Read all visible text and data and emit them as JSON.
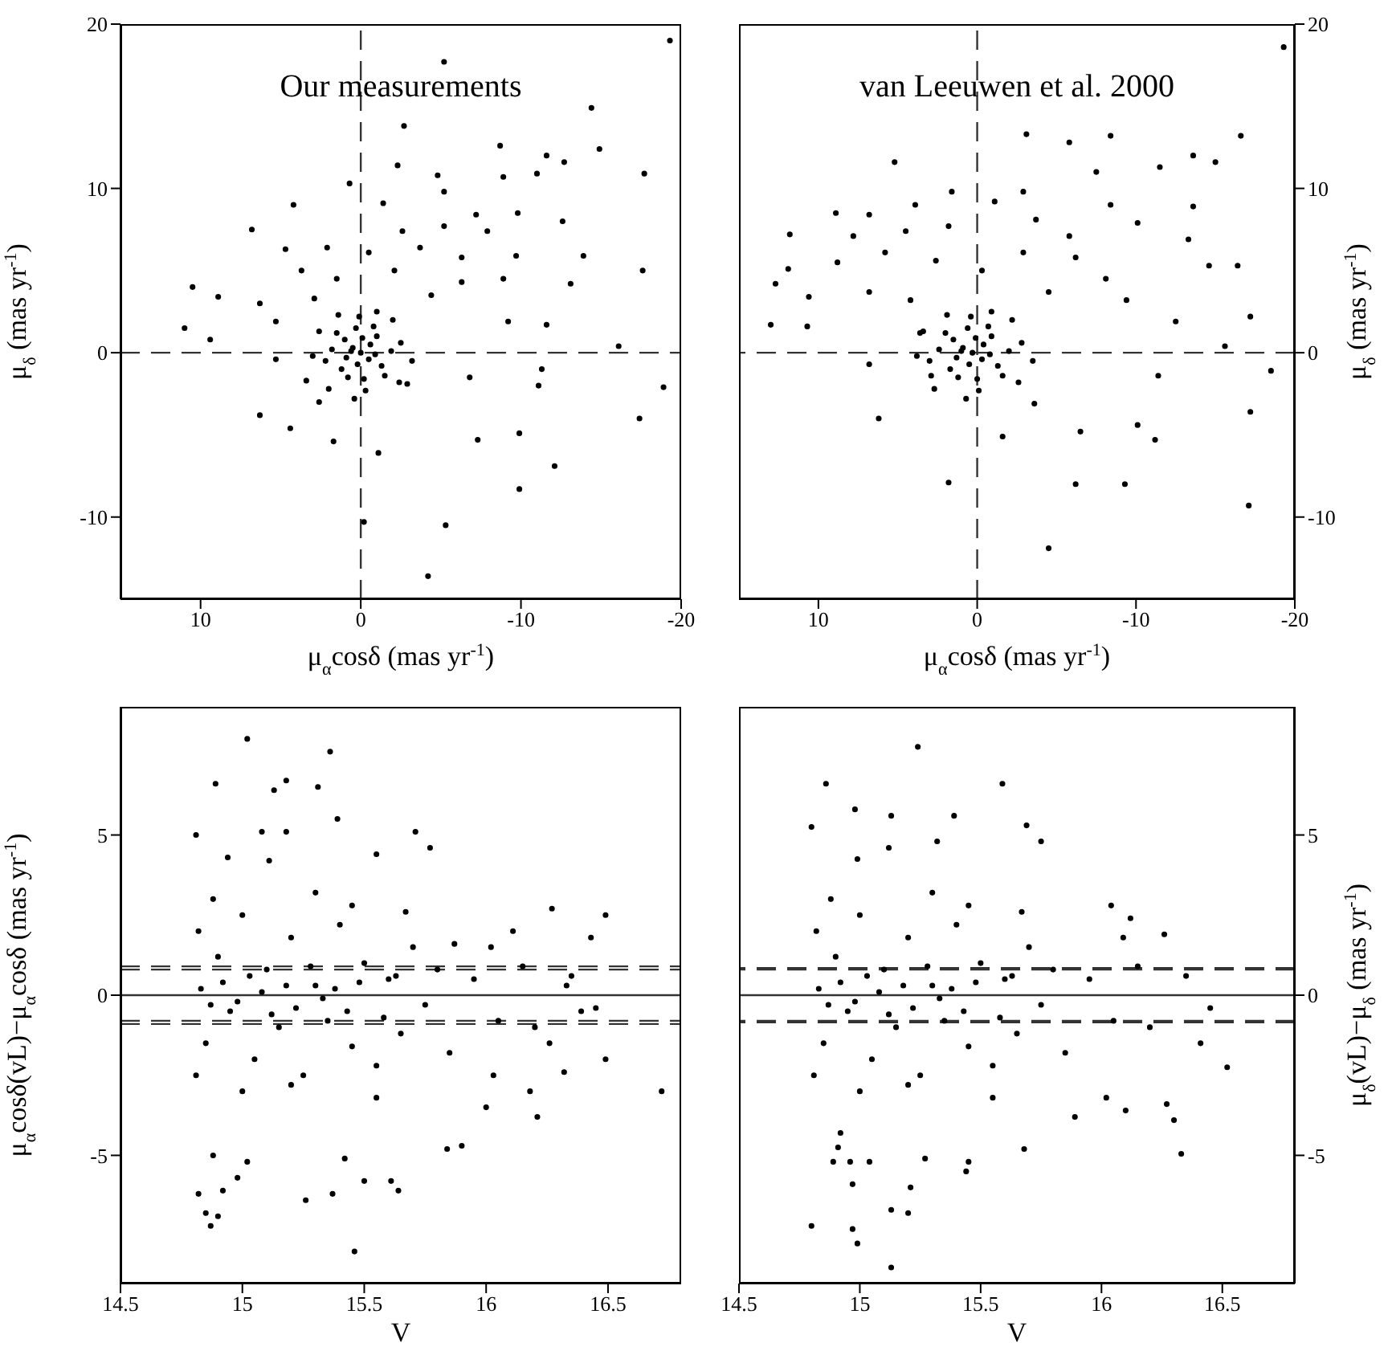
{
  "chart_data": [
    {
      "type": "scatter",
      "title": "Our measurements",
      "xlabel": "μ$_{α}$cosδ (mas yr$^{-1}$)",
      "ylabel": "μ$_{δ}$ (mas yr$^{-1}$)",
      "xlim": [
        15,
        -20
      ],
      "xticks": [
        10,
        0,
        -10,
        -20
      ],
      "ylim": [
        -15,
        20
      ],
      "yticks": [
        -10,
        0,
        10,
        20
      ],
      "marker": "circle",
      "ref_lines": [
        {
          "axis": "x",
          "value": 0,
          "line_style": "dashed"
        },
        {
          "axis": "y",
          "value": 0,
          "line_style": "dashed"
        }
      ],
      "series": [
        {
          "color": "#000000",
          "x": [
            -19.3,
            -5.2,
            -14.4,
            -2.7,
            -14.9,
            -8.7,
            -11.6,
            -12.7,
            -17.7,
            -11.0,
            -8.9,
            -2.3,
            -4.8,
            0.7,
            -5.2,
            4.2,
            -1.4,
            -7.2,
            -9.8,
            -12.6,
            6.8,
            -2.6,
            -5.2,
            -7.9,
            -13.9,
            4.7,
            2.1,
            -0.5,
            -3.7,
            -6.3,
            -9.7,
            10.5,
            8.9,
            3.7,
            1.5,
            -2.1,
            -6.3,
            -8.9,
            -13.1,
            -17.6,
            6.3,
            2.9,
            -4.4,
            -9.2,
            -11.6,
            11.0,
            9.4,
            5.3,
            -16.1,
            6.3,
            4.4,
            1.7,
            -1.1,
            -11.3,
            -11.1,
            -6.8,
            -18.9,
            -17.4,
            -7.3,
            -9.9,
            -12.1,
            -9.9,
            -0.2,
            -5.3,
            -4.2,
            5.3,
            2.6,
            -2.9,
            3.4,
            0,
            0.5,
            -0.5,
            1,
            -1,
            1.2,
            -1.3,
            0.3,
            -0.2,
            1.8,
            -1.9,
            0.8,
            -0.8,
            1.5,
            -1.5,
            2.2,
            -2.5,
            0.1,
            -0.3,
            2.6,
            -2.4,
            1.4,
            -1.0,
            3.0,
            -3.2,
            0.4,
            2.0,
            -2.0,
            0.6,
            -0.6,
            0.2,
            -0.1,
            0.9,
            -0.9
          ],
          "values": [
            19.0,
            17.7,
            14.9,
            13.8,
            12.4,
            12.6,
            12.0,
            11.6,
            10.9,
            10.9,
            10.7,
            11.4,
            10.8,
            10.3,
            9.8,
            9.0,
            9.1,
            8.4,
            8.5,
            8.0,
            7.5,
            7.4,
            7.7,
            7.4,
            5.9,
            6.3,
            6.4,
            6.1,
            6.4,
            5.8,
            5.9,
            4.0,
            3.4,
            5.0,
            4.5,
            5.0,
            4.3,
            4.5,
            4.2,
            5.0,
            3.0,
            3.3,
            3.5,
            1.9,
            1.7,
            1.5,
            0.8,
            1.9,
            0.4,
            -3.8,
            -4.6,
            -5.4,
            -6.1,
            -1.0,
            -2.0,
            -1.5,
            -2.1,
            -4.0,
            -5.3,
            -4.9,
            -6.9,
            -8.3,
            -10.3,
            -10.5,
            -13.6,
            -0.4,
            -3.0,
            -1.9,
            -1.7,
            0,
            0.3,
            -0.4,
            0.8,
            1,
            -1,
            -0.8,
            1.5,
            -1.6,
            0.2,
            0.1,
            -1.5,
            1.6,
            1.2,
            -1.4,
            -0.5,
            0.6,
            2.2,
            -2.3,
            1.3,
            -1.8,
            2.3,
            2.5,
            -0.2,
            -0.5,
            -2.8,
            -2.2,
            2.0,
            0.1,
            0.5,
            -0.7,
            0.9,
            -0.3,
            -0.1
          ]
        }
      ]
    },
    {
      "type": "scatter",
      "title": "van Leeuwen et al. 2000",
      "xlabel": "μ$_{α}$cosδ (mas yr$^{-1}$)",
      "y2label": "μ$_{δ}$ (mas yr$^{-1}$)",
      "xlim": [
        15,
        -20
      ],
      "xticks": [
        10,
        0,
        -10,
        -20
      ],
      "y2lim": [
        -15,
        20
      ],
      "y2ticks": [
        -10,
        0,
        10,
        20
      ],
      "marker": "circle",
      "ref_lines": [
        {
          "axis": "x",
          "value": 0,
          "line_style": "dashed"
        },
        {
          "axis": "y2",
          "value": 0,
          "line_style": "dashed"
        }
      ],
      "series": [
        {
          "color": "#000000",
          "axis": "y2",
          "x": [
            -19.3,
            -3.1,
            -5.8,
            -8.4,
            -16.6,
            -13.6,
            -15.0,
            -11.5,
            -7.5,
            5.2,
            1.6,
            -1.1,
            -2.9,
            8.9,
            6.8,
            3.9,
            -8.4,
            -13.6,
            11.8,
            7.8,
            4.5,
            1.8,
            -3.7,
            -5.8,
            -10.1,
            -13.3,
            11.9,
            8.8,
            5.8,
            2.6,
            -0.3,
            -2.9,
            -6.2,
            -8.1,
            -14.6,
            -16.4,
            12.7,
            10.6,
            6.8,
            4.2,
            -4.5,
            -9.4,
            13.0,
            10.7,
            -12.5,
            -17.2,
            -15.6,
            6.8,
            6.2,
            -11.4,
            -18.5,
            -1.6,
            -6.5,
            -10.1,
            -11.2,
            -17.2,
            1.8,
            -6.2,
            -9.3,
            -17.1,
            -4.5,
            2.9,
            -3.6,
            3.6,
            0.3,
            0.9,
            -0.3,
            1.5,
            -0.9,
            1.7,
            -1.3,
            0.6,
            0,
            2.4,
            -2.0,
            1.2,
            -0.7,
            2.0,
            -1.6,
            3.0,
            -2.8,
            0.4,
            -0.1,
            3.4,
            -2.6,
            1.9,
            -0.9,
            3.8,
            -3.5,
            0.7,
            2.7,
            -2.2,
            1.0,
            -0.4,
            0.5,
            0.1,
            1.3,
            -0.8
          ],
          "values": [
            18.6,
            13.3,
            12.8,
            13.2,
            13.2,
            12.0,
            11.6,
            11.3,
            11.0,
            11.6,
            9.8,
            9.2,
            9.8,
            8.5,
            8.4,
            9.0,
            9.0,
            8.9,
            7.2,
            7.1,
            7.4,
            7.7,
            8.1,
            7.1,
            7.9,
            6.9,
            5.1,
            5.5,
            6.1,
            5.6,
            5.0,
            6.1,
            5.8,
            4.5,
            5.3,
            5.3,
            4.2,
            3.4,
            3.7,
            3.2,
            3.7,
            3.2,
            1.7,
            1.6,
            1.9,
            2.2,
            0.4,
            -0.7,
            -4.0,
            -1.4,
            -1.1,
            -5.1,
            -4.8,
            -4.4,
            -5.3,
            -3.6,
            -7.9,
            -8.0,
            -8.0,
            -9.3,
            -11.9,
            -1.4,
            -3.1,
            1.2,
            0,
            0.3,
            -0.4,
            0.8,
            1,
            -1,
            -0.8,
            1.5,
            -1.6,
            0.2,
            0.1,
            -1.5,
            1.6,
            1.2,
            -1.4,
            -0.5,
            0.6,
            2.2,
            -2.3,
            1.3,
            -1.8,
            2.3,
            2.5,
            -0.2,
            -0.5,
            -2.8,
            -2.2,
            2.0,
            0.1,
            0.5,
            -0.7,
            0.9,
            -0.3,
            -0.1
          ]
        }
      ]
    },
    {
      "type": "scatter",
      "xlabel": "V",
      "ylabel": "μ$_{α}$cosδ(vL)−μ$_{α}$cosδ (mas yr$^{-1}$)",
      "xlim": [
        14.5,
        16.8
      ],
      "xticks": [
        14.5,
        15,
        15.5,
        16,
        16.5
      ],
      "ylim": [
        -9,
        9
      ],
      "yticks": [
        -5,
        0,
        5
      ],
      "marker": "circle",
      "ref_lines": [
        {
          "axis": "y",
          "value": 0,
          "line_style": "solid"
        },
        {
          "axis": "y",
          "value": 0.8,
          "line_style": "dashed"
        },
        {
          "axis": "y",
          "value": -0.8,
          "line_style": "dashed"
        },
        {
          "axis": "y",
          "value": 0.9,
          "line_style": "dashed"
        },
        {
          "axis": "y",
          "value": -0.9,
          "line_style": "dashed"
        }
      ],
      "series": [
        {
          "color": "#000000",
          "x": [
            15.02,
            15.36,
            14.89,
            15.18,
            15.13,
            15.31,
            15.39,
            14.81,
            15.08,
            15.18,
            15.71,
            15.77,
            15.55,
            14.94,
            15.11,
            16.49,
            16.27,
            16.43,
            16.11,
            16.02,
            15.87,
            16.33,
            16.39,
            16.26,
            16.49,
            16.03,
            16.32,
            16.18,
            16.72,
            16.0,
            16.21,
            15.9,
            15.84,
            14.88,
            15.02,
            14.98,
            15.42,
            15.5,
            15.61,
            14.82,
            14.92,
            15.64,
            15.37,
            15.26,
            14.85,
            14.9,
            14.87,
            15.46,
            14.82,
            14.85,
            14.9,
            14.95,
            15.0,
            15.05,
            15.1,
            15.15,
            15.2,
            15.25,
            15.3,
            15.35,
            15.4,
            15.45,
            15.5,
            15.55,
            15.6,
            15.65,
            15.7,
            15.75,
            15.8,
            15.85,
            14.83,
            14.87,
            14.92,
            14.98,
            15.03,
            15.08,
            15.12,
            15.18,
            15.22,
            15.28,
            15.33,
            15.38,
            15.43,
            15.48,
            15.58,
            15.63,
            14.88,
            15.0,
            15.3,
            15.2,
            15.45,
            15.55,
            15.67,
            14.81,
            15.95,
            16.05,
            16.15,
            16.2,
            16.35,
            16.45
          ],
          "values": [
            8.0,
            7.6,
            6.6,
            6.7,
            6.4,
            6.5,
            5.5,
            5.0,
            5.1,
            5.1,
            5.1,
            4.6,
            4.4,
            4.3,
            4.2,
            2.5,
            2.7,
            1.8,
            2.0,
            1.5,
            1.6,
            0.3,
            -0.5,
            -1.5,
            -2.0,
            -2.5,
            -2.4,
            -3.0,
            -3.0,
            -3.5,
            -3.8,
            -4.7,
            -4.8,
            -5.0,
            -5.2,
            -5.7,
            -5.1,
            -5.8,
            -5.8,
            -6.2,
            -6.1,
            -6.1,
            -6.2,
            -6.4,
            -6.8,
            -6.9,
            -7.2,
            -8.0,
            2.0,
            -1.5,
            1.2,
            -0.5,
            2.5,
            -2.0,
            0.8,
            -1.0,
            1.8,
            -2.5,
            0.3,
            -0.8,
            2.2,
            -1.6,
            1.0,
            -2.2,
            0.5,
            -1.2,
            1.5,
            -0.3,
            0.8,
            -1.8,
            0.2,
            -0.3,
            0.4,
            -0.2,
            0.6,
            0.1,
            -0.6,
            0.3,
            -0.4,
            0.9,
            -0.1,
            0.2,
            -0.5,
            0.4,
            -0.7,
            0.6,
            3.0,
            -3.0,
            3.2,
            -2.8,
            2.8,
            -3.2,
            2.6,
            -2.5,
            0.5,
            -0.8,
            0.9,
            -1.0,
            0.6,
            -0.4
          ]
        }
      ]
    },
    {
      "type": "scatter",
      "xlabel": "V",
      "y2label": "μ$_{δ}$(vL)−μ$_{δ}$ (mas yr$^{-1}$)",
      "xlim": [
        14.5,
        16.8
      ],
      "xticks": [
        14.5,
        15,
        15.5,
        16,
        16.5
      ],
      "y2lim": [
        -9,
        9
      ],
      "y2ticks": [
        -5,
        0,
        5
      ],
      "marker": "circle",
      "ref_lines": [
        {
          "axis": "y2",
          "value": 0,
          "line_style": "solid"
        },
        {
          "axis": "y2",
          "value": 0.8,
          "line_style": "dashed"
        },
        {
          "axis": "y2",
          "value": -0.8,
          "line_style": "dashed"
        },
        {
          "axis": "y2",
          "value": 0.85,
          "line_style": "dashed"
        },
        {
          "axis": "y2",
          "value": -0.85,
          "line_style": "dashed"
        }
      ],
      "series": [
        {
          "color": "#000000",
          "axis": "y2",
          "x": [
            15.24,
            14.86,
            15.59,
            14.98,
            15.13,
            15.39,
            14.8,
            15.69,
            15.75,
            15.32,
            14.99,
            15.12,
            16.04,
            16.12,
            16.26,
            16.09,
            16.52,
            16.41,
            16.27,
            16.3,
            16.1,
            16.02,
            15.89,
            16.33,
            14.92,
            14.91,
            14.89,
            14.96,
            15.04,
            15.45,
            15.27,
            15.68,
            15.44,
            14.97,
            15.21,
            15.13,
            15.2,
            14.8,
            14.97,
            14.99,
            15.13,
            14.82,
            14.85,
            14.9,
            14.95,
            15.0,
            15.05,
            15.1,
            15.15,
            15.2,
            15.25,
            15.3,
            15.35,
            15.4,
            15.45,
            15.5,
            15.55,
            15.6,
            15.65,
            15.7,
            15.75,
            15.8,
            15.85,
            14.83,
            14.87,
            14.92,
            14.98,
            15.03,
            15.08,
            15.12,
            15.18,
            15.22,
            15.28,
            15.33,
            15.38,
            15.43,
            15.48,
            15.58,
            15.63,
            14.88,
            15.0,
            15.3,
            15.2,
            15.45,
            15.55,
            15.67,
            14.81,
            15.95,
            16.05,
            16.15,
            16.2,
            16.35,
            16.45
          ],
          "values": [
            7.75,
            6.6,
            6.6,
            5.8,
            5.6,
            5.6,
            5.25,
            5.3,
            4.8,
            4.8,
            4.25,
            4.6,
            2.8,
            2.4,
            1.9,
            1.8,
            -2.25,
            -1.5,
            -3.4,
            -3.9,
            -3.6,
            -3.2,
            -3.8,
            -4.95,
            -4.3,
            -4.75,
            -5.2,
            -5.2,
            -5.2,
            -5.2,
            -5.1,
            -4.8,
            -5.5,
            -5.9,
            -6.0,
            -6.7,
            -6.8,
            -7.2,
            -7.3,
            -7.75,
            -8.5,
            2.0,
            -1.5,
            1.2,
            -0.5,
            2.5,
            -2.0,
            0.8,
            -1.0,
            1.8,
            -2.5,
            0.3,
            -0.8,
            2.2,
            -1.6,
            1.0,
            -2.2,
            0.5,
            -1.2,
            1.5,
            -0.3,
            0.8,
            -1.8,
            0.2,
            -0.3,
            0.4,
            -0.2,
            0.6,
            0.1,
            -0.6,
            0.3,
            -0.4,
            0.9,
            -0.1,
            0.2,
            -0.5,
            0.4,
            -0.7,
            0.6,
            3.0,
            -3.0,
            3.2,
            -2.8,
            2.8,
            -3.2,
            2.6,
            -2.5,
            0.5,
            -0.8,
            0.9,
            -1.0,
            0.6,
            -0.4
          ]
        }
      ]
    }
  ]
}
